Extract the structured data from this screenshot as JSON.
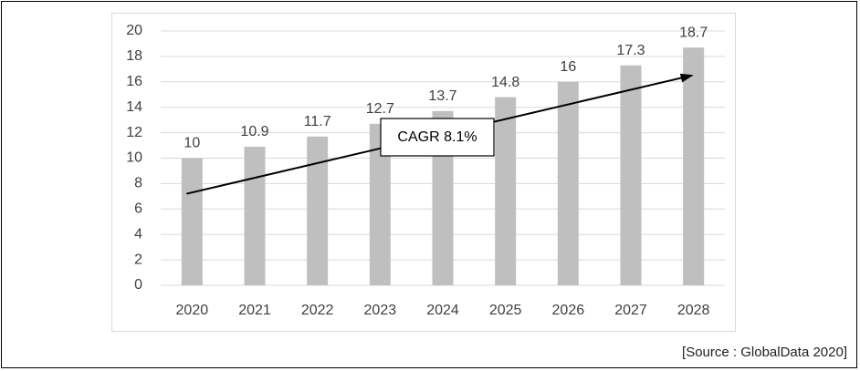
{
  "source_note": "[Source : GlobalData 2020]",
  "colors": {
    "bar": "#bfbfbf",
    "grid": "#d9d9d9",
    "text": "#404040",
    "arrow": "#000000"
  },
  "chart_data": {
    "type": "bar",
    "categories": [
      "2020",
      "2021",
      "2022",
      "2023",
      "2024",
      "2025",
      "2026",
      "2027",
      "2028"
    ],
    "values": [
      10,
      10.9,
      11.7,
      12.7,
      13.7,
      14.8,
      16,
      17.3,
      18.7
    ],
    "data_labels": [
      "10",
      "10.9",
      "11.7",
      "12.7",
      "13.7",
      "14.8",
      "16",
      "17.3",
      "18.7"
    ],
    "title": "",
    "xlabel": "",
    "ylabel": "",
    "ylim": [
      0,
      20
    ],
    "yticks": [
      0,
      2,
      4,
      6,
      8,
      10,
      12,
      14,
      16,
      18,
      20
    ],
    "grid": true,
    "legend": "none",
    "annotation": {
      "text": "CAGR 8.1%",
      "type": "trend-arrow",
      "from": {
        "x": "2020",
        "y": 7.2
      },
      "to": {
        "x": "2028",
        "y": 16.5
      }
    }
  }
}
